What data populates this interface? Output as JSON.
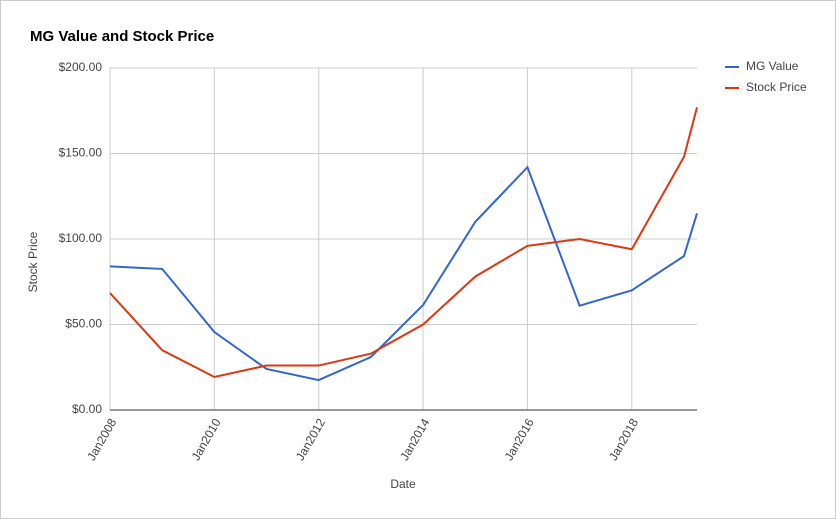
{
  "chart_data": {
    "type": "line",
    "title": "MG Value and Stock Price",
    "x_label": "Date",
    "y_label": "Stock Price",
    "x": [
      2008,
      2009,
      2010,
      2011,
      2012,
      2013,
      2014,
      2015,
      2016,
      2017,
      2018,
      2019,
      2019.25
    ],
    "xlim": [
      2008,
      2019.25
    ],
    "xticks": [
      {
        "value": 2008,
        "label": "Jan2008"
      },
      {
        "value": 2010,
        "label": "Jan2010"
      },
      {
        "value": 2012,
        "label": "Jan2012"
      },
      {
        "value": 2014,
        "label": "Jan2014"
      },
      {
        "value": 2016,
        "label": "Jan2016"
      },
      {
        "value": 2018,
        "label": "Jan2018"
      }
    ],
    "ylim": [
      0,
      200
    ],
    "yticks": [
      {
        "value": 0,
        "label": "$0.00"
      },
      {
        "value": 50,
        "label": "$50.00"
      },
      {
        "value": 100,
        "label": "$100.00"
      },
      {
        "value": 150,
        "label": "$150.00"
      },
      {
        "value": 200,
        "label": "$200.00"
      }
    ],
    "grid": true,
    "legend": "right",
    "series": [
      {
        "name": "MG Value",
        "color": "#3366cc",
        "values": [
          84,
          82.5,
          45.6,
          24,
          17.5,
          31,
          61.4,
          110,
          142,
          61,
          70,
          90,
          115
        ]
      },
      {
        "name": "Stock Price",
        "color": "#dc3912",
        "values": [
          68.4,
          35,
          19.3,
          26,
          26,
          33,
          50,
          78,
          96,
          100,
          94,
          148,
          177
        ]
      }
    ]
  }
}
